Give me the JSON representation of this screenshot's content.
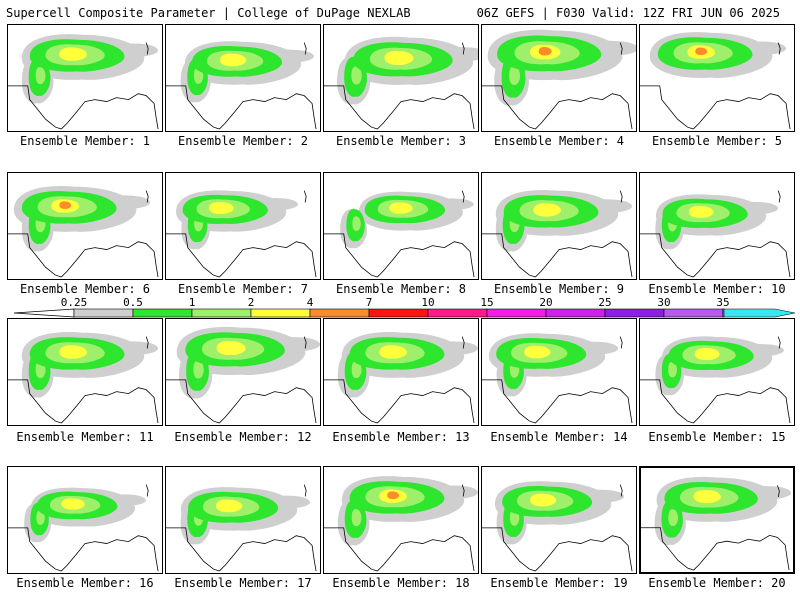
{
  "header": {
    "left": "Supercell Composite Parameter | College of DuPage NEXLAB",
    "right": "06Z GEFS | F030 Valid: 12Z FRI JUN 06 2025"
  },
  "members": [
    {
      "label": "Ensemble Member: 1"
    },
    {
      "label": "Ensemble Member: 2"
    },
    {
      "label": "Ensemble Member: 3"
    },
    {
      "label": "Ensemble Member: 4"
    },
    {
      "label": "Ensemble Member: 5"
    },
    {
      "label": "Ensemble Member: 6"
    },
    {
      "label": "Ensemble Member: 7"
    },
    {
      "label": "Ensemble Member: 8"
    },
    {
      "label": "Ensemble Member: 9"
    },
    {
      "label": "Ensemble Member: 10"
    },
    {
      "label": "Ensemble Member: 11"
    },
    {
      "label": "Ensemble Member: 12"
    },
    {
      "label": "Ensemble Member: 13"
    },
    {
      "label": "Ensemble Member: 14"
    },
    {
      "label": "Ensemble Member: 15"
    },
    {
      "label": "Ensemble Member: 16"
    },
    {
      "label": "Ensemble Member: 17"
    },
    {
      "label": "Ensemble Member: 18"
    },
    {
      "label": "Ensemble Member: 19"
    },
    {
      "label": "Ensemble Member: 20"
    }
  ],
  "colorbar": {
    "levels": [
      "0.25",
      "0.5",
      "1",
      "2",
      "4",
      "7",
      "10",
      "15",
      "20",
      "25",
      "30",
      "35"
    ],
    "colors": [
      "#cfcfcf",
      "#2ee62e",
      "#9ef06a",
      "#ffff3c",
      "#ff8c28",
      "#ff1414",
      "#ff1a8c",
      "#f01ee6",
      "#d21ef0",
      "#8c1ee6",
      "#b45af0",
      "#3ce6f0"
    ]
  },
  "palette": {
    "gray": "#cfcfcf",
    "green": "#2ee62e",
    "lightgreen": "#9ef06a",
    "yellow": "#ffff3c",
    "orange": "#ff8c28",
    "red": "#ff1414"
  }
}
